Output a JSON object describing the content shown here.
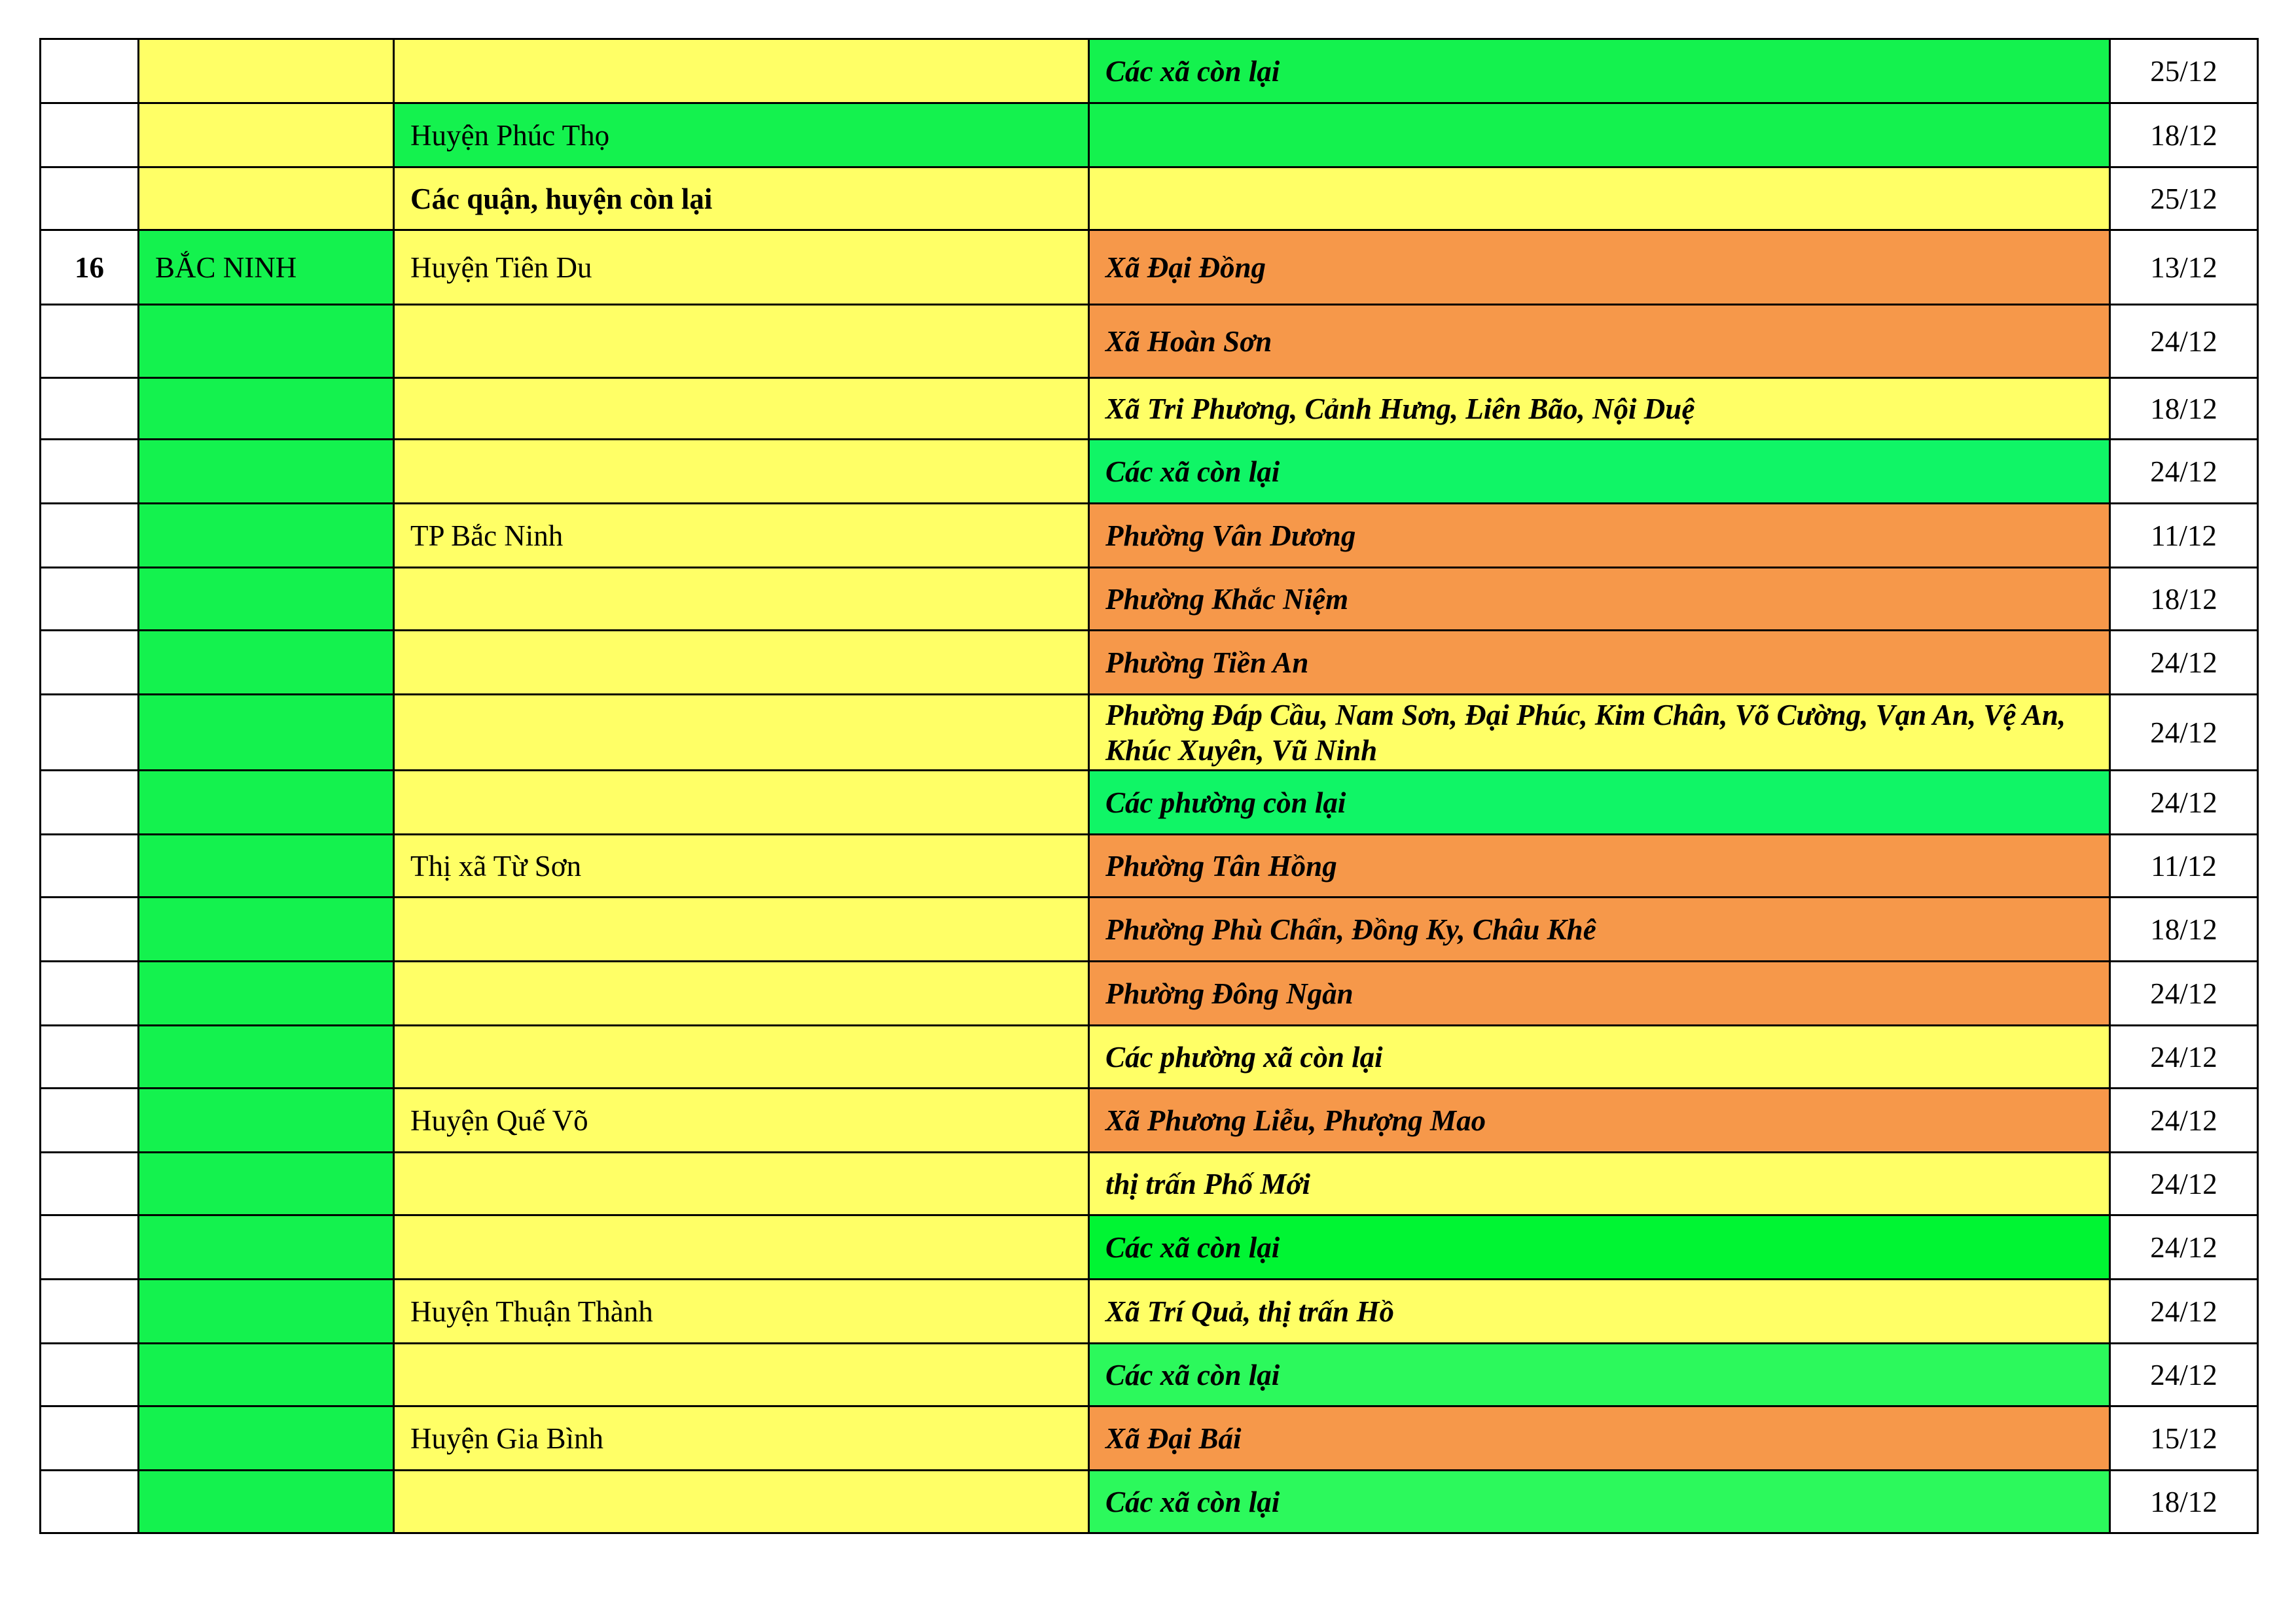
{
  "colors": {
    "yellow": "#FFFF66",
    "green": "#14F24E",
    "green2": "#10F566",
    "green3": "#00F533",
    "green4": "#2CF95C",
    "orange": "#F6984A",
    "white": "#FFFFFF"
  },
  "rows": [
    {
      "no": "",
      "province": "",
      "province_bg": "yellow",
      "district": "",
      "district_bg": "yellow",
      "district_bold": false,
      "ward": "Các xã còn lại",
      "ward_bg": "green",
      "date": "25/12"
    },
    {
      "no": "",
      "province": "",
      "province_bg": "yellow",
      "district": "Huyện Phúc Thọ",
      "district_bg": "green",
      "district_bold": false,
      "ward": "",
      "ward_bg": "green",
      "date": "18/12"
    },
    {
      "no": "",
      "province": "",
      "province_bg": "yellow",
      "district": "Các quận, huyện còn lại",
      "district_bg": "yellow",
      "district_bold": true,
      "ward": "",
      "ward_bg": "yellow",
      "date": "25/12"
    },
    {
      "no": "16",
      "province": "BẮC NINH",
      "province_bg": "green",
      "district": "Huyện Tiên Du",
      "district_bg": "yellow",
      "district_bold": false,
      "ward": "Xã Đại Đồng",
      "ward_bg": "orange",
      "date": "13/12"
    },
    {
      "no": "",
      "province": "",
      "province_bg": "green",
      "district": "",
      "district_bg": "yellow",
      "district_bold": false,
      "ward": "Xã Hoàn Sơn",
      "ward_bg": "orange",
      "date": "24/12"
    },
    {
      "no": "",
      "province": "",
      "province_bg": "green",
      "district": "",
      "district_bg": "yellow",
      "district_bold": false,
      "ward": "Xã Tri Phương, Cảnh Hưng, Liên Bão, Nội Duệ",
      "ward_bg": "yellow",
      "date": "18/12"
    },
    {
      "no": "",
      "province": "",
      "province_bg": "green",
      "district": "",
      "district_bg": "yellow",
      "district_bold": false,
      "ward": "Các xã còn lại",
      "ward_bg": "green2",
      "date": "24/12"
    },
    {
      "no": "",
      "province": "",
      "province_bg": "green",
      "district": "TP Bắc Ninh",
      "district_bg": "yellow",
      "district_bold": false,
      "ward": "Phường Vân Dương",
      "ward_bg": "orange",
      "date": "11/12"
    },
    {
      "no": "",
      "province": "",
      "province_bg": "green",
      "district": "",
      "district_bg": "yellow",
      "district_bold": false,
      "ward": "Phường Khắc Niệm",
      "ward_bg": "orange",
      "date": "18/12"
    },
    {
      "no": "",
      "province": "",
      "province_bg": "green",
      "district": "",
      "district_bg": "yellow",
      "district_bold": false,
      "ward": "Phường Tiền An",
      "ward_bg": "orange",
      "date": "24/12"
    },
    {
      "no": "",
      "province": "",
      "province_bg": "green",
      "district": "",
      "district_bg": "yellow",
      "district_bold": false,
      "ward": "Phường Đáp Cầu, Nam Sơn, Đại Phúc, Kim Chân, Võ Cường, Vạn An, Vệ An, Khúc Xuyên, Vũ Ninh",
      "ward_bg": "yellow",
      "date": "24/12"
    },
    {
      "no": "",
      "province": "",
      "province_bg": "green",
      "district": "",
      "district_bg": "yellow",
      "district_bold": false,
      "ward": "Các phường còn lại",
      "ward_bg": "green2",
      "date": "24/12"
    },
    {
      "no": "",
      "province": "",
      "province_bg": "green",
      "district": "Thị xã Từ Sơn",
      "district_bg": "yellow",
      "district_bold": false,
      "ward": "Phường Tân Hồng",
      "ward_bg": "orange",
      "date": "11/12"
    },
    {
      "no": "",
      "province": "",
      "province_bg": "green",
      "district": "",
      "district_bg": "yellow",
      "district_bold": false,
      "ward": "Phường Phù Chẩn, Đồng Ky, Châu Khê",
      "ward_bg": "orange",
      "date": "18/12"
    },
    {
      "no": "",
      "province": "",
      "province_bg": "green",
      "district": "",
      "district_bg": "yellow",
      "district_bold": false,
      "ward": "Phường Đông Ngàn",
      "ward_bg": "orange",
      "date": "24/12"
    },
    {
      "no": "",
      "province": "",
      "province_bg": "green",
      "district": "",
      "district_bg": "yellow",
      "district_bold": false,
      "ward": "Các phường xã còn lại",
      "ward_bg": "yellow",
      "date": "24/12"
    },
    {
      "no": "",
      "province": "",
      "province_bg": "green",
      "district": "Huyện Quế Võ",
      "district_bg": "yellow",
      "district_bold": false,
      "ward": "Xã Phương Liễu, Phượng Mao",
      "ward_bg": "orange",
      "date": "24/12"
    },
    {
      "no": "",
      "province": "",
      "province_bg": "green",
      "district": "",
      "district_bg": "yellow",
      "district_bold": false,
      "ward": "thị trấn Phố Mới",
      "ward_bg": "yellow",
      "date": "24/12"
    },
    {
      "no": "",
      "province": "",
      "province_bg": "green",
      "district": "",
      "district_bg": "yellow",
      "district_bold": false,
      "ward": "Các xã còn lại",
      "ward_bg": "green3",
      "date": "24/12"
    },
    {
      "no": "",
      "province": "",
      "province_bg": "green",
      "district": "Huyện Thuận Thành",
      "district_bg": "yellow",
      "district_bold": false,
      "ward": "Xã Trí Quả, thị trấn Hồ",
      "ward_bg": "yellow",
      "date": "24/12"
    },
    {
      "no": "",
      "province": "",
      "province_bg": "green",
      "district": "",
      "district_bg": "yellow",
      "district_bold": false,
      "ward": "Các xã còn lại",
      "ward_bg": "green4",
      "date": "24/12"
    },
    {
      "no": "",
      "province": "",
      "province_bg": "green",
      "district": "Huyện Gia Bình",
      "district_bg": "yellow",
      "district_bold": false,
      "ward": "Xã Đại Bái",
      "ward_bg": "orange",
      "date": "15/12"
    },
    {
      "no": "",
      "province": "",
      "province_bg": "green",
      "district": "",
      "district_bg": "yellow",
      "district_bold": false,
      "ward": "Các xã còn lại",
      "ward_bg": "green4",
      "date": "18/12"
    }
  ]
}
